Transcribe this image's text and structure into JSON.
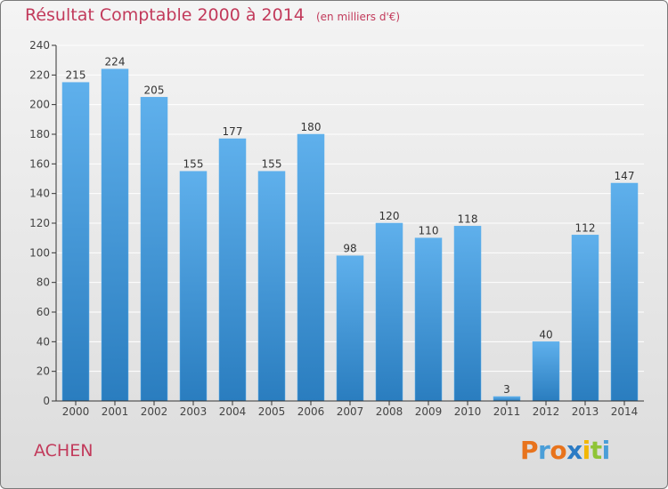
{
  "chart_data": {
    "type": "bar",
    "title": "Résultat Comptable 2000 à 2014",
    "unit_note": "(en milliers d'€)",
    "categories": [
      "2000",
      "2001",
      "2002",
      "2003",
      "2004",
      "2005",
      "2006",
      "2007",
      "2008",
      "2009",
      "2010",
      "2011",
      "2012",
      "2013",
      "2014"
    ],
    "values": [
      215,
      224,
      205,
      155,
      177,
      155,
      180,
      98,
      120,
      110,
      118,
      3,
      40,
      112,
      147
    ],
    "ylim": [
      0,
      240
    ],
    "yticks": [
      0,
      20,
      40,
      60,
      80,
      100,
      120,
      140,
      160,
      180,
      200,
      220,
      240
    ],
    "xlabel": "",
    "ylabel": "",
    "grid": true,
    "colors": {
      "bar_light": "#5fb0ec",
      "bar_dark": "#2a7dbf",
      "grid": "#ffffff",
      "axis": "#333333"
    }
  },
  "commune_name": "ACHEN",
  "logo": {
    "letters": [
      "P",
      "r",
      "o",
      "x",
      "i",
      "t",
      "i"
    ],
    "colors": [
      "#e8731c",
      "#4a9ed8",
      "#e8731c",
      "#2b7bc4",
      "#f2b705",
      "#8fc437",
      "#4a9ed8"
    ]
  }
}
